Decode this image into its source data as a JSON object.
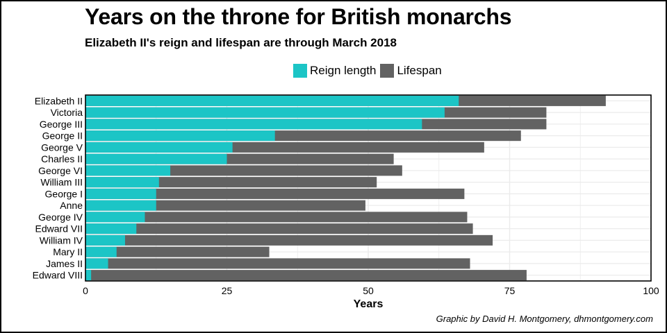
{
  "title": "Years on the throne for British monarchs",
  "subtitle": "Elizabeth II's reign and lifespan are through March 2018",
  "credit": "Graphic by David H. Montgomery, dhmontgomery.com",
  "legend": {
    "reign_label": "Reign length",
    "lifespan_label": "Lifespan"
  },
  "colors": {
    "reign": "#1cc5c6",
    "lifespan": "#626262",
    "grid": "#ebebeb",
    "panel_border": "#000000"
  },
  "chart_data": {
    "type": "bar",
    "orientation": "horizontal",
    "title": "Years on the throne for British monarchs",
    "subtitle": "Elizabeth II's reign and lifespan are through March 2018",
    "xlabel": "Years",
    "ylabel": "",
    "xlim": [
      0,
      100
    ],
    "xticks": [
      0,
      25,
      50,
      75,
      100
    ],
    "grid": true,
    "legend_position": "top",
    "categories": [
      "Elizabeth II",
      "Victoria",
      "George III",
      "George II",
      "George V",
      "Charles II",
      "George VI",
      "William III",
      "George I",
      "Anne",
      "George IV",
      "Edward VII",
      "William IV",
      "Mary II",
      "James II",
      "Edward VIII"
    ],
    "series": [
      {
        "name": "Lifespan",
        "values": [
          92,
          81.5,
          81.5,
          77,
          70.5,
          54.5,
          56,
          51.5,
          67,
          49.5,
          67.5,
          68.5,
          72,
          32.5,
          68,
          78
        ]
      },
      {
        "name": "Reign length",
        "values": [
          66,
          63.5,
          59.5,
          33.5,
          26,
          25,
          15,
          13,
          12.5,
          12.5,
          10.5,
          9,
          7,
          5.5,
          4,
          1
        ]
      }
    ]
  }
}
